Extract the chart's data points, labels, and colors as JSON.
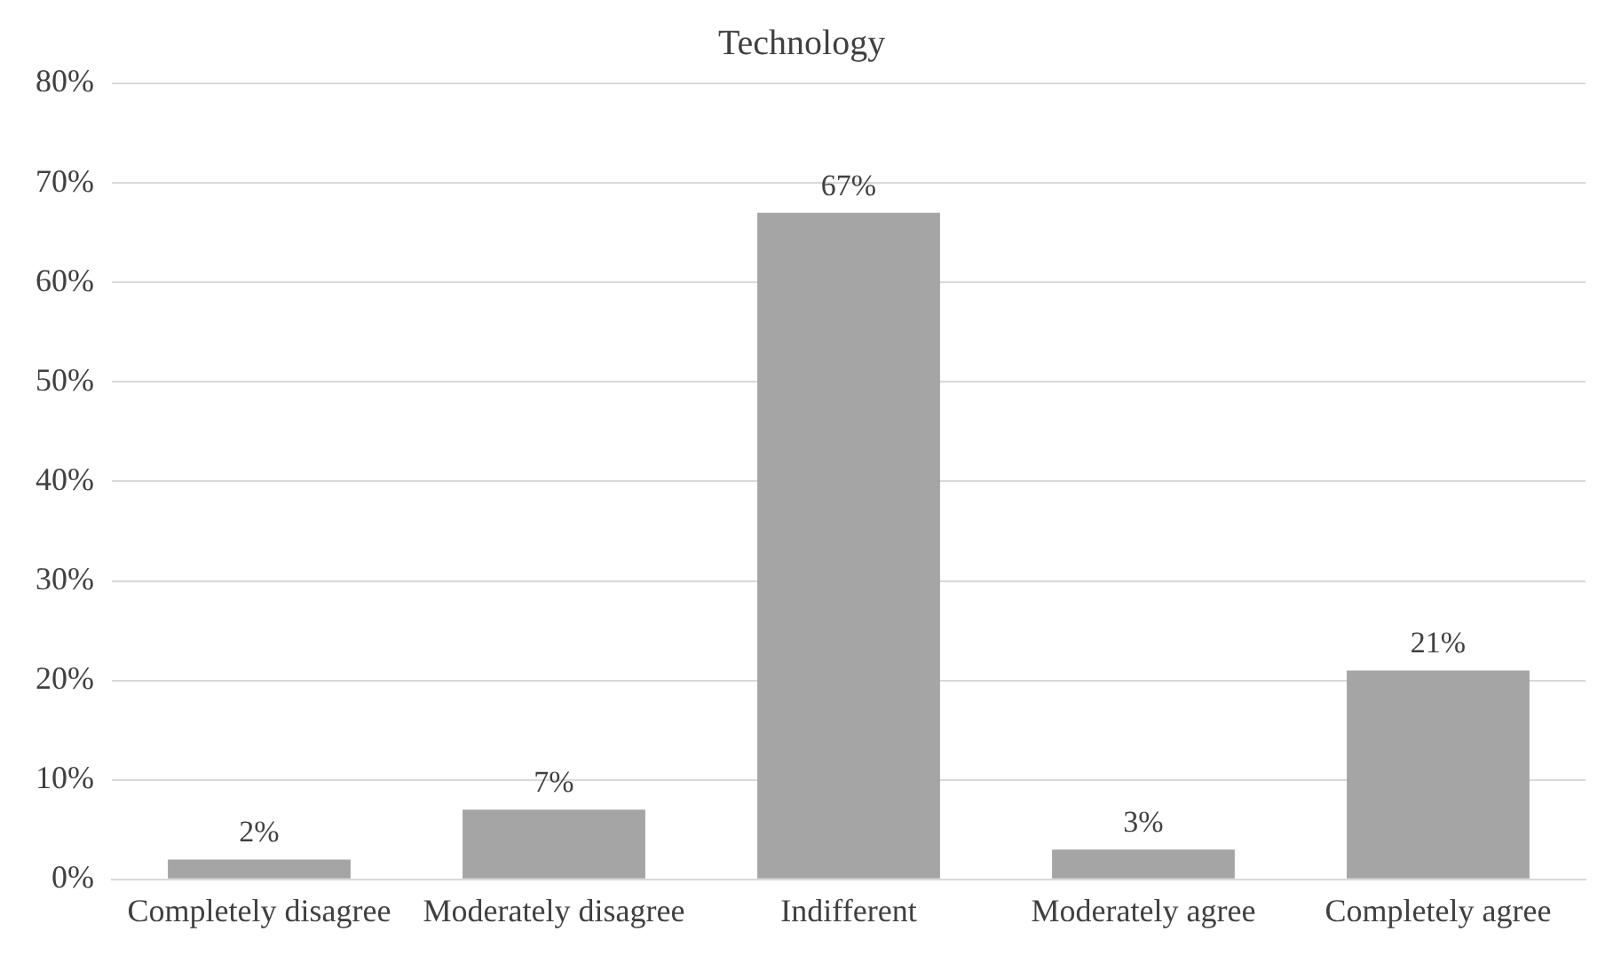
{
  "chart_data": {
    "type": "bar",
    "title": "Technology",
    "categories": [
      "Completely disagree",
      "Moderately disagree",
      "Indifferent",
      "Moderately agree",
      "Completely agree"
    ],
    "values": [
      2,
      7,
      67,
      3,
      21
    ],
    "value_labels": [
      "2%",
      "7%",
      "67%",
      "3%",
      "21%"
    ],
    "color": "#a5a5a5",
    "ylim": [
      0,
      80
    ],
    "yticks": [
      {
        "value": 0,
        "label": "0%"
      },
      {
        "value": 10,
        "label": "10%"
      },
      {
        "value": 20,
        "label": "20%"
      },
      {
        "value": 30,
        "label": "30%"
      },
      {
        "value": 40,
        "label": "40%"
      },
      {
        "value": 50,
        "label": "50%"
      },
      {
        "value": 60,
        "label": "60%"
      },
      {
        "value": 70,
        "label": "70%"
      },
      {
        "value": 80,
        "label": "80%"
      }
    ],
    "grid": "y",
    "legend": false
  }
}
